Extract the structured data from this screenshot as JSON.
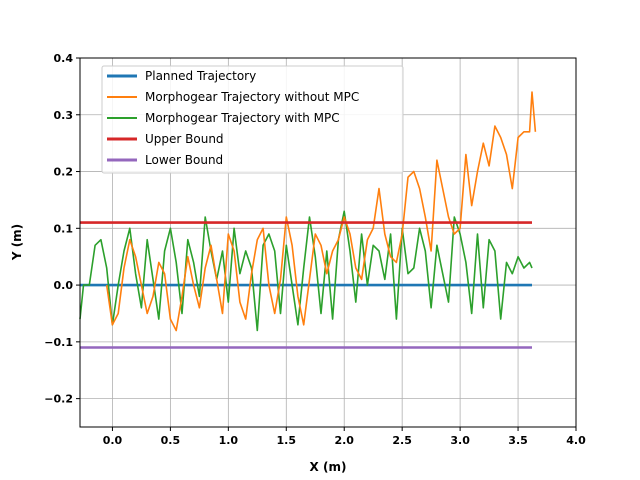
{
  "chart_data": {
    "type": "line",
    "title": "",
    "xlabel": "X (m)",
    "ylabel": "Y (m)",
    "xlim": [
      -0.28,
      4.0
    ],
    "ylim": [
      -0.25,
      0.4
    ],
    "xticks": [
      0.0,
      0.5,
      1.0,
      1.5,
      2.0,
      2.5,
      3.0,
      3.5,
      4.0
    ],
    "xtick_labels": [
      "0.0",
      "0.5",
      "1.0",
      "1.5",
      "2.0",
      "2.5",
      "3.0",
      "3.5",
      "4.0"
    ],
    "yticks": [
      -0.2,
      -0.1,
      0.0,
      0.1,
      0.2,
      0.3,
      0.4
    ],
    "ytick_labels": [
      "−0.2",
      "−0.1",
      "0.0",
      "0.1",
      "0.2",
      "0.3",
      "0.4"
    ],
    "grid": true,
    "legend_position": "upper-left",
    "series": [
      {
        "name": "Planned Trajectory",
        "color": "#1f77b4",
        "x": [
          -0.28,
          3.62
        ],
        "y": [
          0.0,
          0.0
        ]
      },
      {
        "name": "Morphogear Trajectory without MPC",
        "color": "#ff7f0e",
        "x": [
          -0.05,
          0.0,
          0.05,
          0.1,
          0.15,
          0.2,
          0.25,
          0.3,
          0.35,
          0.4,
          0.45,
          0.5,
          0.55,
          0.6,
          0.65,
          0.7,
          0.75,
          0.8,
          0.85,
          0.9,
          0.95,
          1.0,
          1.05,
          1.1,
          1.15,
          1.2,
          1.25,
          1.3,
          1.35,
          1.4,
          1.45,
          1.5,
          1.55,
          1.6,
          1.65,
          1.7,
          1.75,
          1.8,
          1.85,
          1.9,
          1.95,
          2.0,
          2.05,
          2.1,
          2.15,
          2.2,
          2.25,
          2.3,
          2.35,
          2.4,
          2.45,
          2.5,
          2.55,
          2.6,
          2.65,
          2.7,
          2.75,
          2.8,
          2.85,
          2.9,
          2.95,
          3.0,
          3.05,
          3.1,
          3.15,
          3.2,
          3.25,
          3.3,
          3.35,
          3.4,
          3.45,
          3.5,
          3.55,
          3.6,
          3.62,
          3.65
        ],
        "y": [
          0.0,
          -0.07,
          -0.05,
          0.03,
          0.08,
          0.05,
          0.0,
          -0.05,
          -0.02,
          0.04,
          0.02,
          -0.06,
          -0.08,
          -0.02,
          0.05,
          0.0,
          -0.04,
          0.03,
          0.07,
          0.01,
          -0.05,
          0.09,
          0.06,
          -0.03,
          -0.06,
          0.02,
          0.08,
          0.1,
          0.0,
          -0.05,
          0.01,
          0.12,
          0.07,
          -0.02,
          -0.07,
          0.01,
          0.09,
          0.07,
          0.02,
          0.06,
          0.08,
          0.12,
          0.09,
          0.03,
          0.01,
          0.08,
          0.1,
          0.17,
          0.09,
          0.05,
          0.04,
          0.09,
          0.19,
          0.2,
          0.17,
          0.12,
          0.06,
          0.22,
          0.17,
          0.12,
          0.09,
          0.1,
          0.23,
          0.14,
          0.2,
          0.25,
          0.21,
          0.28,
          0.26,
          0.23,
          0.17,
          0.26,
          0.27,
          0.27,
          0.34,
          0.27
        ]
      },
      {
        "name": "Morphogear Trajectory with MPC",
        "color": "#2ca02c",
        "x": [
          -0.28,
          -0.25,
          -0.2,
          -0.15,
          -0.1,
          -0.05,
          0.0,
          0.05,
          0.1,
          0.15,
          0.2,
          0.25,
          0.3,
          0.35,
          0.4,
          0.45,
          0.5,
          0.55,
          0.6,
          0.65,
          0.7,
          0.75,
          0.8,
          0.85,
          0.9,
          0.95,
          1.0,
          1.05,
          1.1,
          1.15,
          1.2,
          1.25,
          1.3,
          1.35,
          1.4,
          1.45,
          1.5,
          1.55,
          1.6,
          1.65,
          1.7,
          1.75,
          1.8,
          1.85,
          1.9,
          1.95,
          2.0,
          2.05,
          2.1,
          2.15,
          2.2,
          2.25,
          2.3,
          2.35,
          2.4,
          2.45,
          2.5,
          2.55,
          2.6,
          2.65,
          2.7,
          2.75,
          2.8,
          2.85,
          2.9,
          2.95,
          3.0,
          3.05,
          3.1,
          3.15,
          3.2,
          3.25,
          3.3,
          3.35,
          3.4,
          3.45,
          3.5,
          3.55,
          3.6,
          3.62
        ],
        "y": [
          -0.06,
          0.0,
          0.0,
          0.07,
          0.08,
          0.03,
          -0.07,
          0.0,
          0.06,
          0.1,
          0.02,
          -0.04,
          0.08,
          0.01,
          -0.06,
          0.06,
          0.1,
          0.04,
          -0.05,
          0.08,
          0.04,
          -0.02,
          0.12,
          0.06,
          0.01,
          0.06,
          -0.03,
          0.1,
          0.02,
          0.06,
          0.03,
          -0.08,
          0.07,
          0.09,
          0.06,
          -0.05,
          0.07,
          0.0,
          -0.07,
          0.03,
          0.12,
          0.05,
          -0.05,
          0.06,
          -0.06,
          0.08,
          0.13,
          0.06,
          -0.03,
          0.09,
          0.0,
          0.07,
          0.06,
          0.01,
          0.09,
          -0.06,
          0.1,
          0.02,
          0.03,
          0.1,
          0.06,
          -0.04,
          0.07,
          0.02,
          -0.03,
          0.12,
          0.09,
          0.04,
          -0.05,
          0.09,
          -0.04,
          0.08,
          0.06,
          -0.06,
          0.04,
          0.02,
          0.05,
          0.03,
          0.04,
          0.03
        ]
      },
      {
        "name": "Upper Bound",
        "color": "#d62728",
        "x": [
          -0.28,
          3.62
        ],
        "y": [
          0.11,
          0.11
        ]
      },
      {
        "name": "Lower Bound",
        "color": "#9467bd",
        "x": [
          -0.28,
          3.62
        ],
        "y": [
          -0.11,
          -0.11
        ]
      }
    ]
  }
}
